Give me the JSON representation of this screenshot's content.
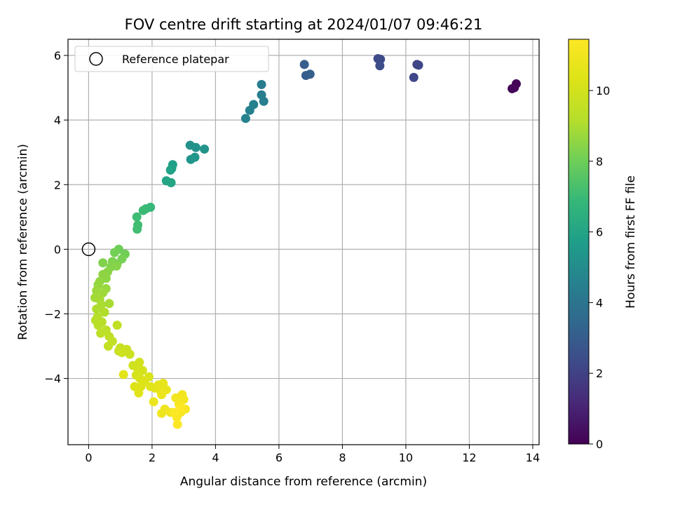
{
  "chart_data": {
    "type": "scatter",
    "title": "FOV centre drift starting at 2024/01/07 09:46:21",
    "xlabel": "Angular distance from reference (arcmin)",
    "ylabel": "Rotation from reference (arcmin)",
    "xlim": [
      -0.65,
      14.2
    ],
    "ylim": [
      -6.05,
      6.5
    ],
    "xticks": [
      0,
      2,
      4,
      6,
      8,
      10,
      12,
      14
    ],
    "yticks": [
      -4,
      -2,
      0,
      2,
      4,
      6
    ],
    "xtick_labels": [
      "0",
      "2",
      "4",
      "6",
      "8",
      "10",
      "12",
      "14"
    ],
    "ytick_labels": [
      "−4",
      "−2",
      "0",
      "2",
      "4",
      "6"
    ],
    "grid": true,
    "legend": {
      "position": "top-left",
      "label": "Reference platepar"
    },
    "reference_point": {
      "x": 0,
      "y": 0
    },
    "colorbar": {
      "label": "Hours from first FF file",
      "colormap": "viridis",
      "range": [
        0,
        11.45
      ],
      "ticks": [
        0,
        2,
        4,
        6,
        8,
        10
      ],
      "tick_labels": [
        "0",
        "2",
        "4",
        "6",
        "8",
        "10"
      ]
    },
    "points": [
      [
        13.35,
        4.97,
        0.05
      ],
      [
        13.48,
        5.12,
        0.1
      ],
      [
        13.42,
        5.0,
        0.15
      ],
      [
        10.35,
        5.72,
        2.1
      ],
      [
        10.4,
        5.7,
        2.15
      ],
      [
        10.25,
        5.32,
        2.2
      ],
      [
        9.12,
        5.9,
        2.3
      ],
      [
        9.2,
        5.88,
        2.35
      ],
      [
        9.18,
        5.68,
        2.4
      ],
      [
        6.8,
        5.72,
        3.0
      ],
      [
        6.85,
        5.38,
        3.05
      ],
      [
        6.98,
        5.42,
        3.1
      ],
      [
        5.45,
        5.1,
        4.3
      ],
      [
        5.45,
        4.78,
        4.35
      ],
      [
        5.52,
        4.58,
        4.4
      ],
      [
        5.2,
        4.48,
        4.5
      ],
      [
        5.08,
        4.3,
        4.55
      ],
      [
        4.95,
        4.05,
        4.6
      ],
      [
        3.2,
        3.22,
        5.2
      ],
      [
        3.38,
        3.15,
        5.25
      ],
      [
        3.65,
        3.1,
        5.3
      ],
      [
        3.35,
        2.85,
        5.35
      ],
      [
        3.22,
        2.78,
        5.4
      ],
      [
        2.65,
        2.62,
        5.8
      ],
      [
        2.62,
        2.5,
        5.85
      ],
      [
        2.58,
        2.45,
        5.9
      ],
      [
        2.45,
        2.12,
        6.0
      ],
      [
        2.6,
        2.06,
        6.05
      ],
      [
        1.95,
        1.3,
        6.9
      ],
      [
        1.8,
        1.25,
        6.95
      ],
      [
        1.72,
        1.2,
        7.0
      ],
      [
        1.52,
        1.0,
        7.05
      ],
      [
        1.55,
        0.75,
        7.1
      ],
      [
        1.53,
        0.62,
        7.15
      ],
      [
        0.95,
        0.0,
        8.0
      ],
      [
        1.15,
        -0.15,
        8.05
      ],
      [
        0.82,
        -0.1,
        8.1
      ],
      [
        1.05,
        -0.3,
        8.15
      ],
      [
        0.9,
        -0.45,
        8.2
      ],
      [
        0.75,
        -0.38,
        8.25
      ],
      [
        0.45,
        -0.42,
        8.3
      ],
      [
        0.7,
        -0.55,
        8.35
      ],
      [
        0.88,
        -0.52,
        8.4
      ],
      [
        0.6,
        -0.7,
        8.45
      ],
      [
        0.55,
        -0.9,
        8.5
      ],
      [
        0.45,
        -0.78,
        8.55
      ],
      [
        0.35,
        -1.0,
        8.6
      ],
      [
        0.3,
        -1.1,
        8.65
      ],
      [
        0.55,
        -1.22,
        8.7
      ],
      [
        0.25,
        -1.28,
        8.75
      ],
      [
        0.45,
        -1.35,
        8.8
      ],
      [
        0.2,
        -1.5,
        8.85
      ],
      [
        0.35,
        -1.55,
        8.9
      ],
      [
        0.65,
        -1.68,
        8.95
      ],
      [
        0.4,
        -1.72,
        9.0
      ],
      [
        0.25,
        -1.85,
        9.05
      ],
      [
        0.5,
        -1.95,
        9.1
      ],
      [
        0.28,
        -2.1,
        9.15
      ],
      [
        0.22,
        -2.2,
        9.2
      ],
      [
        0.42,
        -2.25,
        9.25
      ],
      [
        0.3,
        -2.35,
        9.3
      ],
      [
        0.55,
        -2.5,
        9.35
      ],
      [
        0.38,
        -2.6,
        9.4
      ],
      [
        0.65,
        -2.7,
        9.45
      ],
      [
        0.9,
        -2.35,
        9.5
      ],
      [
        0.75,
        -2.85,
        9.55
      ],
      [
        0.62,
        -3.0,
        9.6
      ],
      [
        1.0,
        -3.05,
        9.65
      ],
      [
        0.95,
        -3.15,
        9.7
      ],
      [
        1.2,
        -3.1,
        9.75
      ],
      [
        1.3,
        -3.25,
        9.8
      ],
      [
        1.05,
        -3.2,
        9.85
      ],
      [
        1.4,
        -3.6,
        9.9
      ],
      [
        1.6,
        -3.5,
        9.95
      ],
      [
        1.55,
        -3.7,
        10.0
      ],
      [
        1.7,
        -3.75,
        10.05
      ],
      [
        1.5,
        -3.9,
        10.1
      ],
      [
        1.62,
        -4.0,
        10.15
      ],
      [
        1.9,
        -3.95,
        10.2
      ],
      [
        1.75,
        -4.1,
        10.25
      ],
      [
        1.45,
        -4.25,
        10.3
      ],
      [
        1.65,
        -4.25,
        10.35
      ],
      [
        1.58,
        -4.45,
        10.4
      ],
      [
        1.1,
        -3.88,
        10.45
      ],
      [
        1.95,
        -4.25,
        10.5
      ],
      [
        2.1,
        -4.3,
        10.55
      ],
      [
        2.2,
        -4.2,
        10.6
      ],
      [
        2.35,
        -4.15,
        10.65
      ],
      [
        2.28,
        -4.4,
        10.7
      ],
      [
        2.45,
        -4.35,
        10.75
      ],
      [
        2.05,
        -4.72,
        10.8
      ],
      [
        2.3,
        -4.5,
        10.85
      ],
      [
        2.4,
        -4.95,
        10.9
      ],
      [
        2.3,
        -5.08,
        10.95
      ],
      [
        2.58,
        -5.05,
        11.0
      ],
      [
        2.75,
        -4.6,
        11.05
      ],
      [
        2.95,
        -4.5,
        11.1
      ],
      [
        3.0,
        -4.65,
        11.15
      ],
      [
        2.85,
        -4.8,
        11.2
      ],
      [
        3.05,
        -4.95,
        11.25
      ],
      [
        2.9,
        -5.05,
        11.3
      ],
      [
        2.78,
        -5.2,
        11.35
      ],
      [
        2.7,
        -5.05,
        11.38
      ],
      [
        2.8,
        -5.42,
        11.42
      ],
      [
        2.92,
        -4.9,
        11.45
      ]
    ]
  }
}
